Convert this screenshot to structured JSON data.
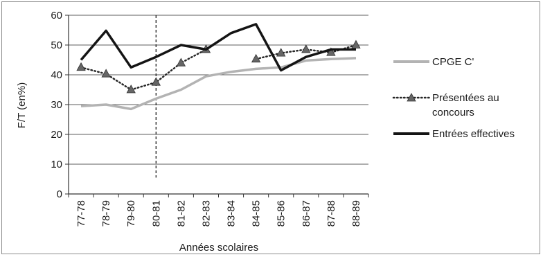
{
  "chart_data": {
    "type": "line",
    "title": "",
    "xlabel": "Années scolaires",
    "ylabel": "F/T (en%)",
    "ylim": [
      0,
      60
    ],
    "yticks": [
      0,
      10,
      20,
      30,
      40,
      50,
      60
    ],
    "grid": "horizontal",
    "legend_position": "right",
    "categories": [
      "77-78",
      "78-79",
      "79-80",
      "80-81",
      "81-82",
      "82-83",
      "83-84",
      "84-85",
      "85-86",
      "86-87",
      "87-88",
      "88-89"
    ],
    "series": [
      {
        "name": "CPGE C'",
        "style": "solid-gray",
        "color": "#b3b3b3",
        "values": [
          29.5,
          30,
          28.5,
          32,
          35,
          39.5,
          41,
          42,
          42.5,
          44.8,
          45.3,
          45.6
        ]
      },
      {
        "name": "Présentées au concours",
        "style": "dotted-triangle",
        "color": "#262626",
        "marker_color": "#666666",
        "values": [
          42.5,
          40.3,
          35,
          37.5,
          44,
          48.5,
          null,
          45.3,
          47.3,
          48.5,
          47.5,
          50
        ]
      },
      {
        "name": "Entrées effectives",
        "style": "solid-black",
        "color": "#141414",
        "values": [
          45,
          54.8,
          42.5,
          46,
          50,
          48.5,
          54,
          57,
          41.5,
          46,
          48.5,
          48.5
        ]
      }
    ],
    "annotations": [
      {
        "type": "vertical-dashed-line",
        "at_category": "80-81",
        "y_from": 5.5,
        "y_to": 60
      }
    ]
  }
}
